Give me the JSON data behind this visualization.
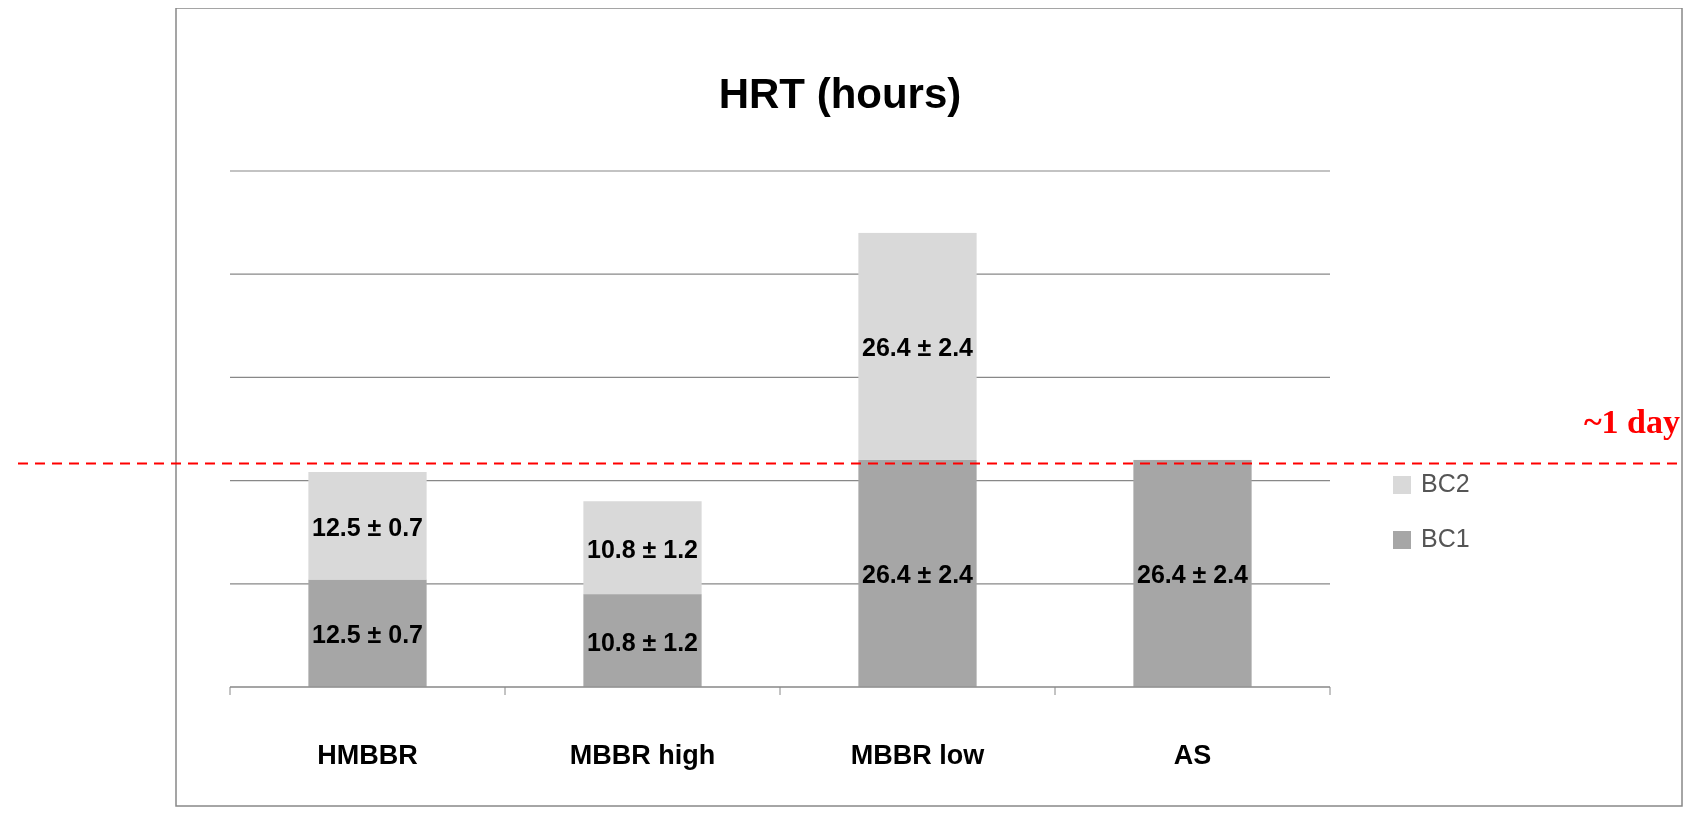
{
  "chart_data": {
    "type": "bar",
    "title": "HRT (hours)",
    "stacked": true,
    "categories": [
      "HMBBR",
      "MBBR high",
      "MBBR low",
      "AS"
    ],
    "series": [
      {
        "name": "BC1",
        "color": "#a6a6a6",
        "values": [
          12.5,
          10.8,
          26.4,
          26.4
        ],
        "value_labels": [
          "12.5 ± 0.7",
          "10.8 ± 1.2",
          "26.4 ± 2.4",
          "26.4 ± 2.4"
        ]
      },
      {
        "name": "BC2",
        "color": "#d9d9d9",
        "values": [
          12.5,
          10.8,
          26.4,
          null
        ],
        "value_labels": [
          "12.5 ± 0.7",
          "10.8 ± 1.2",
          "26.4 ± 2.4",
          null
        ]
      }
    ],
    "ylim": [
      0,
      60
    ],
    "yticks": [
      {
        "value": 0,
        "label": null
      },
      {
        "value": 12,
        "label": null
      },
      {
        "value": 24,
        "label": null
      },
      {
        "value": 36,
        "label": null
      },
      {
        "value": 48,
        "label": null
      },
      {
        "value": 60,
        "label": null
      }
    ],
    "tick_labels": "x",
    "grid": "y",
    "legend": "right",
    "ref_lines": [
      {
        "axis": "y",
        "value": 26,
        "label": "~1 day",
        "color": "#ff0000",
        "line_style": "dashed"
      }
    ]
  }
}
